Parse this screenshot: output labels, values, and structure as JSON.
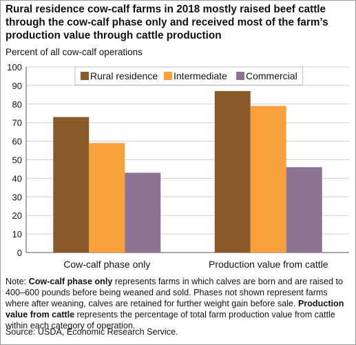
{
  "chart_data": {
    "type": "bar",
    "title": "Rural residence cow-calf farms in 2018 mostly raised beef cattle through the cow-calf phase only and received most of the farm’s production value through cattle production",
    "ylabel": "Percent of all cow-calf operations",
    "xlabel": "",
    "categories": [
      "Cow-calf phase only",
      "Production value from cattle"
    ],
    "series": [
      {
        "name": "Rural residence",
        "color": "#8B5A2B",
        "values": [
          73,
          87
        ]
      },
      {
        "name": "Intermediate",
        "color": "#F7A03C",
        "values": [
          59,
          79
        ]
      },
      {
        "name": "Commercial",
        "color": "#8C7391",
        "values": [
          43,
          46
        ]
      }
    ],
    "ylim": [
      0,
      100
    ],
    "yticks": [
      0,
      10,
      20,
      30,
      40,
      50,
      60,
      70,
      80,
      90,
      100
    ],
    "grid": true,
    "legend": "top"
  },
  "note": {
    "prefix": "Note: ",
    "term1": "Cow-calf phase only",
    "text1": " represents farms in which calves are born and are raised to 400–600 pounds before being weaned and sold. Phases not shown represent farms where after weaning, calves are retained for further weight gain before sale. ",
    "term2": "Production value from cattle",
    "text2": " represents the percentage of total farm production value from cattle within each category of operation."
  },
  "source": "Source: USDA, Economic Research Service."
}
